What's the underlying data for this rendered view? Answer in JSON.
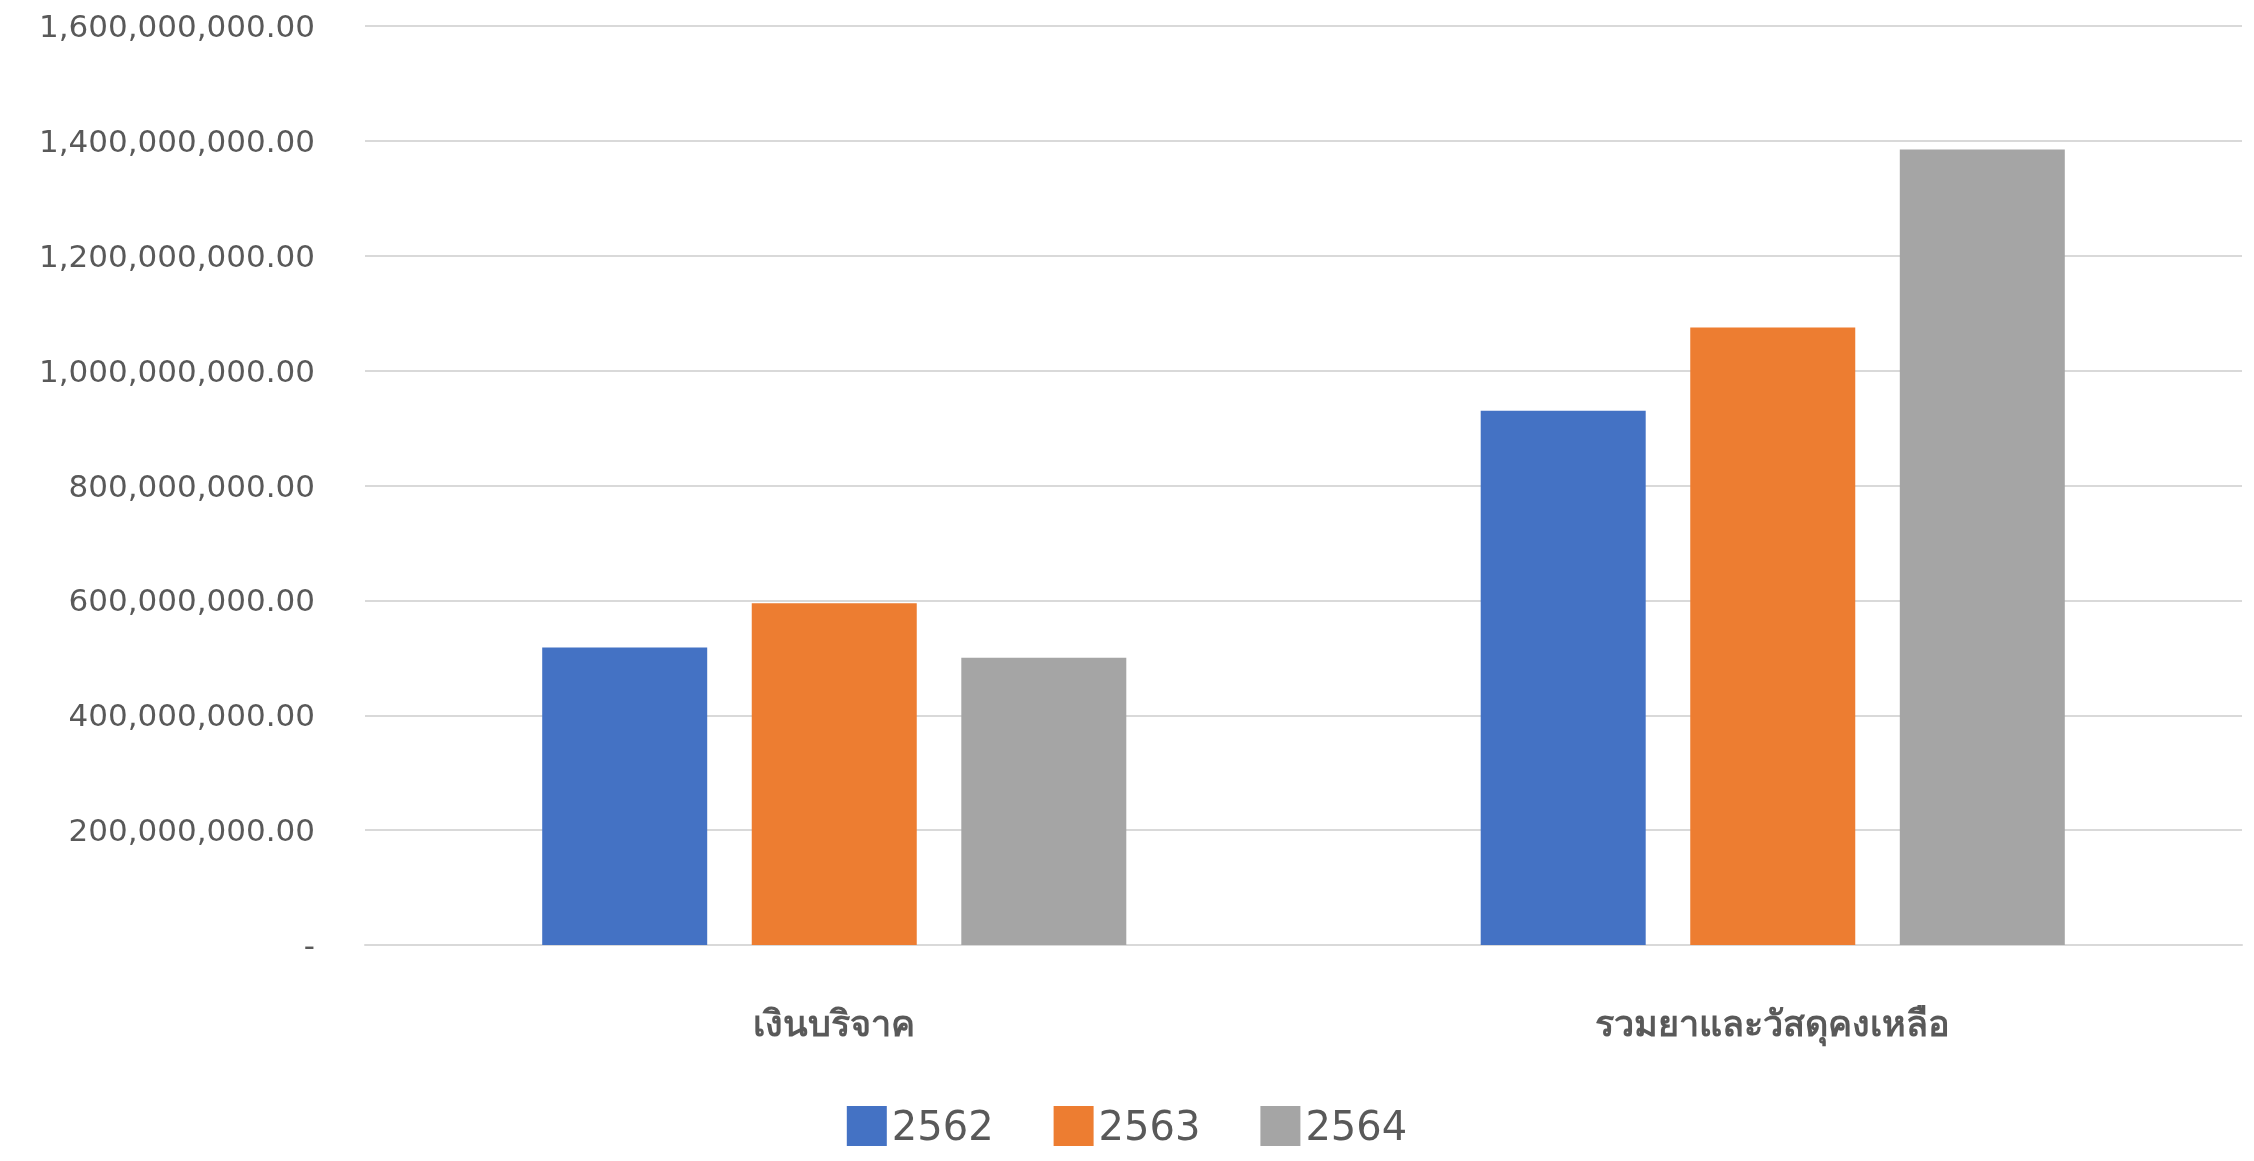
{
  "chart_data": {
    "type": "bar",
    "categories": [
      "เงินบริจาค",
      "รวมยาและวัสดุคงเหลือ"
    ],
    "series": [
      {
        "name": "2562",
        "color": "#4472c4",
        "values": [
          518000000,
          930000000
        ]
      },
      {
        "name": "2563",
        "color": "#ed7d31",
        "values": [
          595000000,
          1075000000
        ]
      },
      {
        "name": "2564",
        "color": "#a5a5a5",
        "values": [
          500000000,
          1385000000
        ]
      }
    ],
    "ylim": [
      0,
      1600000000
    ],
    "yticks": [
      {
        "value": 0,
        "label": "-"
      },
      {
        "value": 200000000,
        "label": "200,000,000.00"
      },
      {
        "value": 400000000,
        "label": "400,000,000.00"
      },
      {
        "value": 600000000,
        "label": "600,000,000.00"
      },
      {
        "value": 800000000,
        "label": "800,000,000.00"
      },
      {
        "value": 1000000000,
        "label": "1,000,000,000.00"
      },
      {
        "value": 1200000000,
        "label": "1,200,000,000.00"
      },
      {
        "value": 1400000000,
        "label": "1,400,000,000.00"
      },
      {
        "value": 1600000000,
        "label": "1,600,000,000.00"
      }
    ],
    "grid": "y",
    "legend": "bottom"
  }
}
